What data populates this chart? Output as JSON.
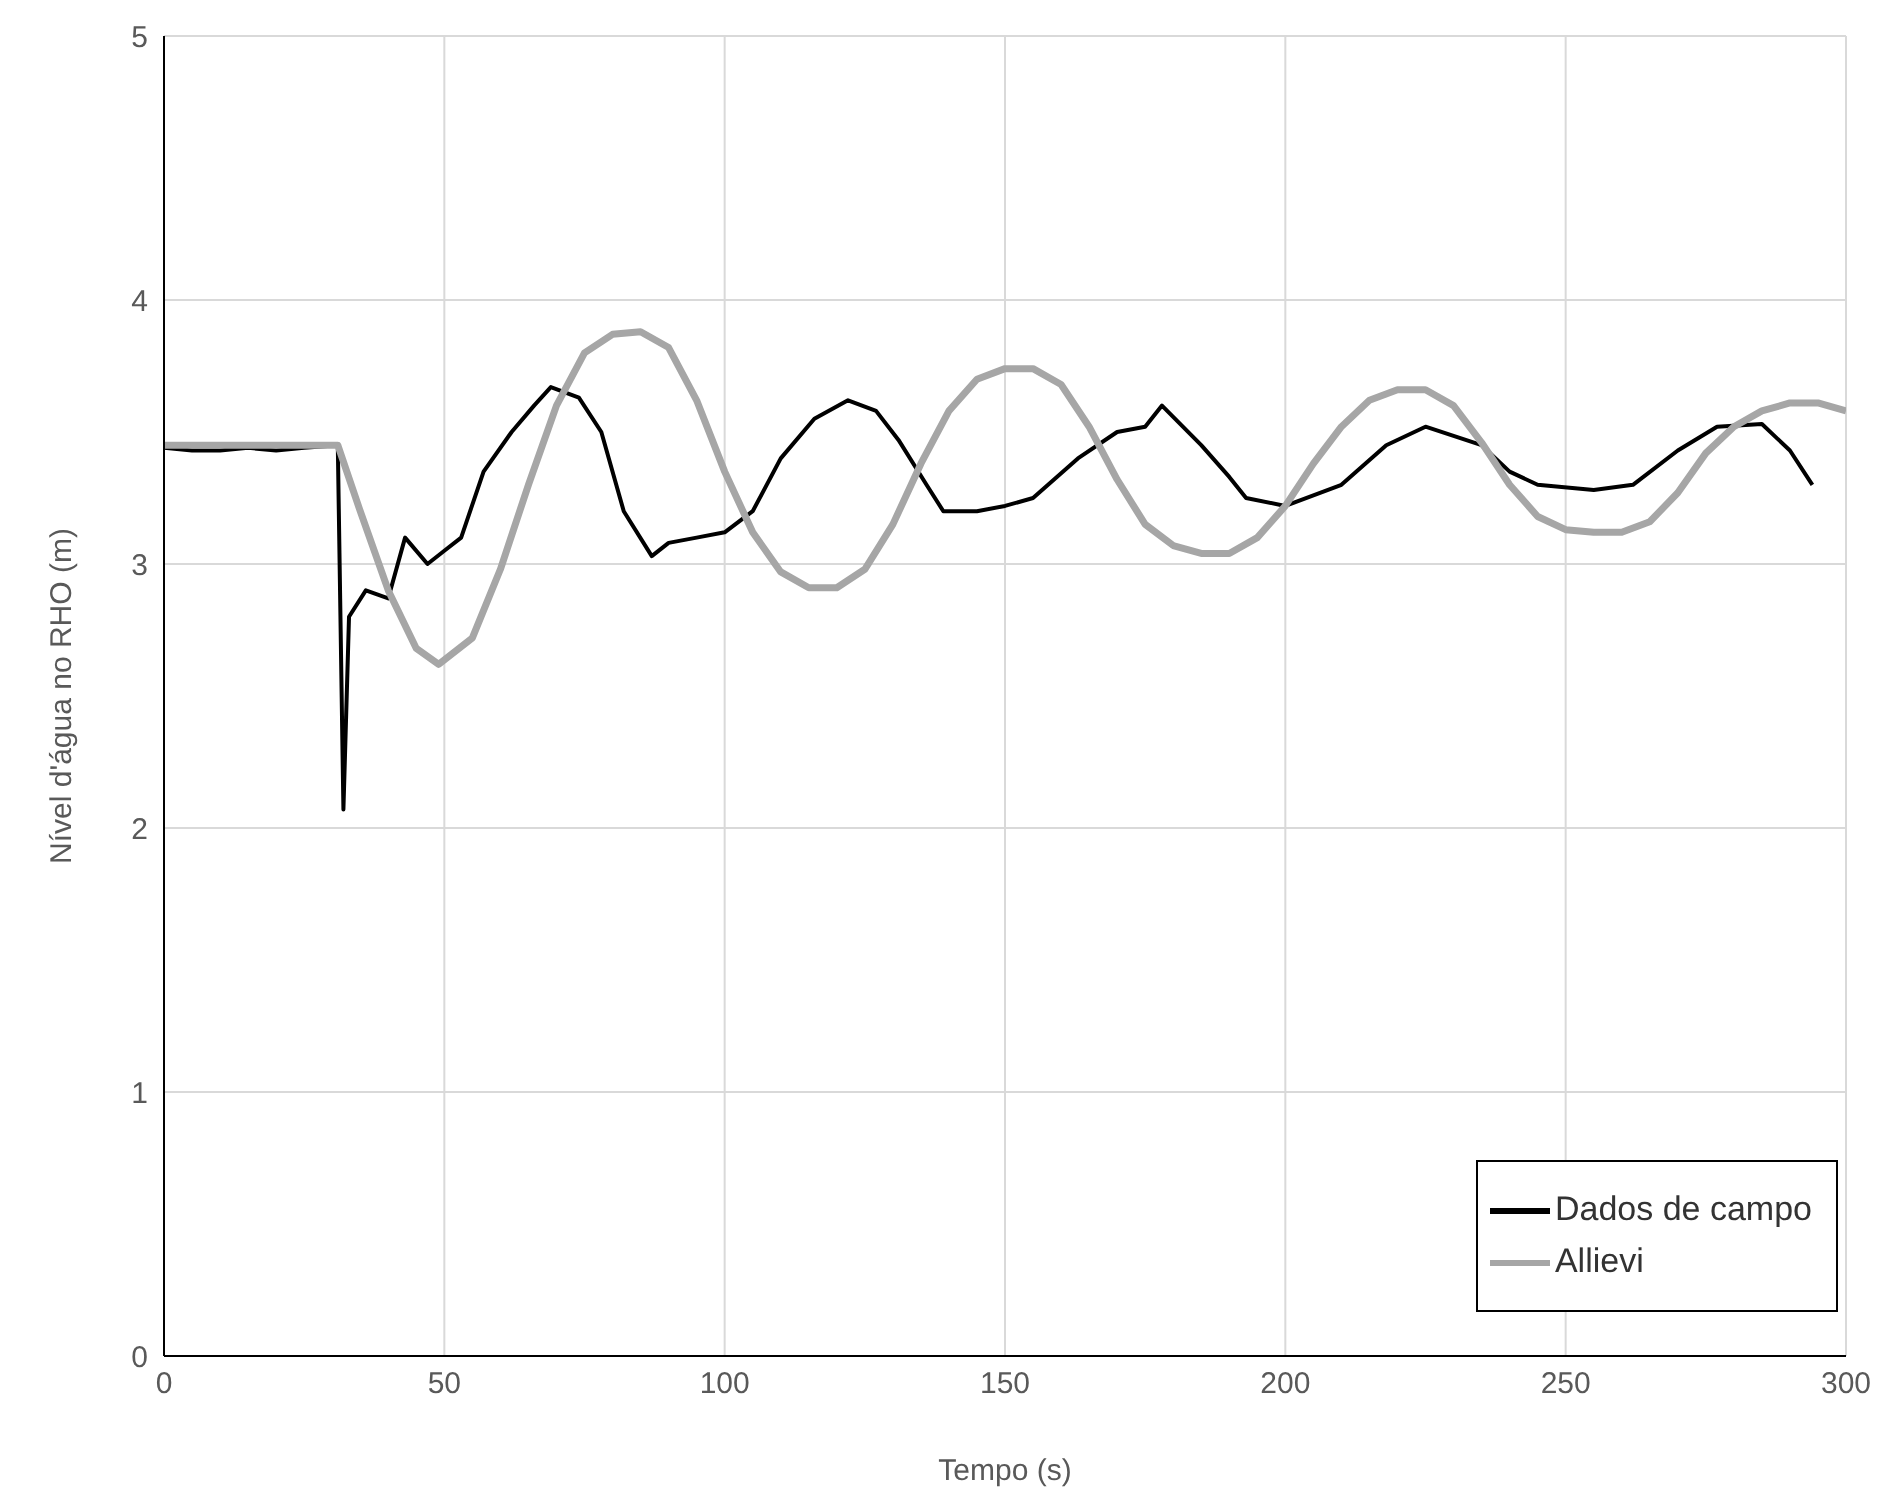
{
  "chart_data": {
    "type": "line",
    "xlabel": "Tempo (s)",
    "ylabel": "Nível d'água no RHO (m)",
    "xlim": [
      0,
      300
    ],
    "xticks": [
      0,
      50,
      100,
      150,
      200,
      250,
      300
    ],
    "ylim": [
      0,
      5
    ],
    "yticks": [
      0,
      1,
      2,
      3,
      4,
      5
    ],
    "grid": true,
    "legend": "bottom right",
    "marker": "none",
    "line_style": "solid",
    "series": [
      {
        "name": "Dados de campo",
        "color": "#000000",
        "x": [
          0,
          5,
          10,
          15,
          20,
          25,
          31,
          32,
          33,
          36,
          40,
          43,
          47,
          50,
          53,
          57,
          62,
          66,
          69,
          74,
          78,
          82,
          87,
          90,
          95,
          100,
          105,
          110,
          116,
          122,
          127,
          131,
          136,
          139,
          145,
          150,
          155,
          163,
          170,
          175,
          178,
          185,
          190,
          193,
          200,
          210,
          218,
          225,
          235,
          240,
          245,
          255,
          262,
          270,
          277,
          285,
          290,
          294
        ],
        "values": [
          3.44,
          3.43,
          3.43,
          3.44,
          3.43,
          3.44,
          3.45,
          2.07,
          2.8,
          2.9,
          2.87,
          3.1,
          3.0,
          3.05,
          3.1,
          3.35,
          3.5,
          3.6,
          3.67,
          3.63,
          3.5,
          3.2,
          3.03,
          3.08,
          3.1,
          3.12,
          3.2,
          3.4,
          3.55,
          3.62,
          3.58,
          3.47,
          3.3,
          3.2,
          3.2,
          3.22,
          3.25,
          3.4,
          3.5,
          3.52,
          3.6,
          3.45,
          3.33,
          3.25,
          3.22,
          3.3,
          3.45,
          3.52,
          3.45,
          3.35,
          3.3,
          3.28,
          3.3,
          3.43,
          3.52,
          3.53,
          3.43,
          3.3
        ]
      },
      {
        "name": "Allievi",
        "color": "#a6a6a6",
        "x": [
          0,
          31,
          35,
          40,
          45,
          49,
          55,
          60,
          65,
          70,
          75,
          80,
          85,
          90,
          95,
          100,
          105,
          110,
          115,
          120,
          125,
          130,
          135,
          140,
          145,
          150,
          155,
          160,
          165,
          170,
          175,
          180,
          185,
          190,
          195,
          200,
          205,
          210,
          215,
          220,
          225,
          230,
          235,
          240,
          245,
          250,
          255,
          260,
          265,
          270,
          275,
          280,
          285,
          290,
          295,
          300
        ],
        "values": [
          3.45,
          3.45,
          3.2,
          2.9,
          2.68,
          2.62,
          2.72,
          2.98,
          3.3,
          3.6,
          3.8,
          3.87,
          3.88,
          3.82,
          3.62,
          3.35,
          3.12,
          2.97,
          2.91,
          2.91,
          2.98,
          3.15,
          3.38,
          3.58,
          3.7,
          3.74,
          3.74,
          3.68,
          3.52,
          3.32,
          3.15,
          3.07,
          3.04,
          3.04,
          3.1,
          3.22,
          3.38,
          3.52,
          3.62,
          3.66,
          3.66,
          3.6,
          3.46,
          3.3,
          3.18,
          3.13,
          3.12,
          3.12,
          3.16,
          3.27,
          3.42,
          3.52,
          3.58,
          3.61,
          3.61,
          3.58
        ]
      }
    ]
  }
}
